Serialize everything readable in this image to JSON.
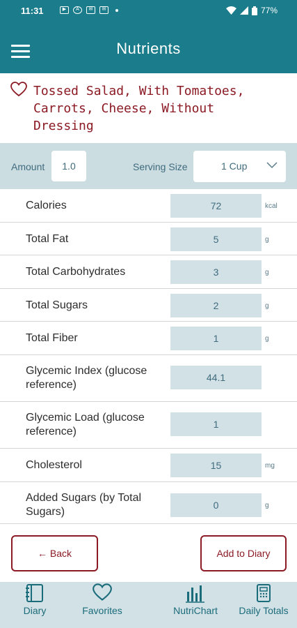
{
  "status_bar": {
    "time": "11:31",
    "battery": "77%"
  },
  "app_bar": {
    "title": "Nutrients"
  },
  "food": {
    "name": "Tossed Salad, With Tomatoes, Carrots, Cheese, Without Dressing"
  },
  "amount": {
    "label": "Amount",
    "value": "1.0"
  },
  "serving": {
    "label": "Serving Size",
    "value": "1 Cup"
  },
  "nutrients": [
    {
      "label": "Calories",
      "value": "72",
      "unit": "kcal"
    },
    {
      "label": "Total Fat",
      "value": "5",
      "unit": "g"
    },
    {
      "label": "Total Carbohydrates",
      "value": "3",
      "unit": "g"
    },
    {
      "label": "Total Sugars",
      "value": "2",
      "unit": "g"
    },
    {
      "label": "Total Fiber",
      "value": "1",
      "unit": "g"
    },
    {
      "label": "Glycemic Index (glucose reference)",
      "value": "44.1",
      "unit": ""
    },
    {
      "label": "Glycemic Load (glucose reference)",
      "value": "1",
      "unit": ""
    },
    {
      "label": "Cholesterol",
      "value": "15",
      "unit": "mg"
    },
    {
      "label": "Added Sugars (by Total Sugars)",
      "value": "0",
      "unit": "g"
    }
  ],
  "actions": {
    "back_label": "← Back",
    "add_label": "Add to Diary"
  },
  "bottom_nav": [
    {
      "label": "Diary",
      "icon": "diary-icon"
    },
    {
      "label": "Favorites",
      "icon": "heart-icon"
    },
    {
      "label": "NutriChart",
      "icon": "bar-chart-icon"
    },
    {
      "label": "Daily Totals",
      "icon": "calculator-icon"
    }
  ],
  "colors": {
    "primary": "#1b7d8c",
    "accent": "#8b1a24",
    "field_bg": "#d2e1e6"
  }
}
